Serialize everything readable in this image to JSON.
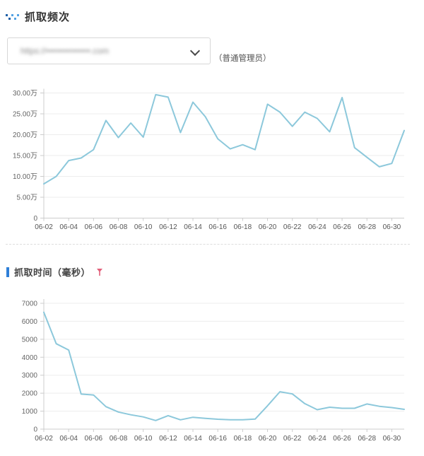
{
  "header": {
    "title": "抓取频次",
    "icon": "crawl-zigzag-icon",
    "site_selector": {
      "value_masked": "https://•••••••••••••••.com",
      "masked": true,
      "admin_label": "（普通管理员）"
    }
  },
  "section2": {
    "title": "抓取时间（毫秒）",
    "icon": "red-down-arrow-icon"
  },
  "colors": {
    "accent_blue": "#2e7fd8",
    "line_blue": "#8cc8db",
    "icon_blue_dark": "#1c5fa8",
    "icon_blue_light": "#53a2e4",
    "red_icon": "#e2607b",
    "axis": "#cccccc",
    "gridline": "#ededed",
    "tick_label": "#666666"
  },
  "chart_data": [
    {
      "type": "line",
      "title": "抓取频次",
      "xlabel": "",
      "ylabel": "",
      "yunit": "万",
      "grid": true,
      "legend": false,
      "xlabel_interval": 2,
      "ylim": [
        0,
        300000
      ],
      "yticks": [
        {
          "value": 0,
          "label": "0"
        },
        {
          "value": 50000,
          "label": "5.00万"
        },
        {
          "value": 100000,
          "label": "10.00万"
        },
        {
          "value": 150000,
          "label": "15.00万"
        },
        {
          "value": 200000,
          "label": "20.00万"
        },
        {
          "value": 250000,
          "label": "25.00万"
        },
        {
          "value": 300000,
          "label": "30.00万"
        }
      ],
      "x": [
        "06-02",
        "06-03",
        "06-04",
        "06-05",
        "06-06",
        "06-07",
        "06-08",
        "06-09",
        "06-10",
        "06-11",
        "06-12",
        "06-13",
        "06-14",
        "06-15",
        "06-16",
        "06-17",
        "06-18",
        "06-19",
        "06-20",
        "06-21",
        "06-22",
        "06-23",
        "06-24",
        "06-25",
        "06-26",
        "06-27",
        "06-28",
        "06-29",
        "06-30",
        "07-01"
      ],
      "values": [
        82000,
        100000,
        138000,
        144000,
        164000,
        234000,
        193000,
        228000,
        194000,
        296000,
        290000,
        205000,
        278000,
        243000,
        190000,
        166000,
        176000,
        164000,
        273000,
        254000,
        220000,
        254000,
        239000,
        207000,
        289000,
        169000,
        146000,
        123000,
        131000,
        210000
      ]
    },
    {
      "type": "line",
      "title": "抓取时间（毫秒）",
      "xlabel": "",
      "ylabel": "",
      "yunit": "毫秒",
      "grid": true,
      "legend": false,
      "xlabel_interval": 2,
      "ylim": [
        0,
        7000
      ],
      "yticks": [
        {
          "value": 0,
          "label": "0"
        },
        {
          "value": 1000,
          "label": "1000"
        },
        {
          "value": 2000,
          "label": "2000"
        },
        {
          "value": 3000,
          "label": "3000"
        },
        {
          "value": 4000,
          "label": "4000"
        },
        {
          "value": 5000,
          "label": "5000"
        },
        {
          "value": 6000,
          "label": "6000"
        },
        {
          "value": 7000,
          "label": "7000"
        }
      ],
      "x": [
        "06-02",
        "06-03",
        "06-04",
        "06-05",
        "06-06",
        "06-07",
        "06-08",
        "06-09",
        "06-10",
        "06-11",
        "06-12",
        "06-13",
        "06-14",
        "06-15",
        "06-16",
        "06-17",
        "06-18",
        "06-19",
        "06-20",
        "06-21",
        "06-22",
        "06-23",
        "06-24",
        "06-25",
        "06-26",
        "06-27",
        "06-28",
        "06-29",
        "06-30",
        "07-01"
      ],
      "values": [
        6500,
        4750,
        4400,
        1950,
        1900,
        1250,
        950,
        800,
        680,
        480,
        750,
        520,
        660,
        600,
        550,
        520,
        520,
        560,
        1300,
        2080,
        1960,
        1420,
        1080,
        1220,
        1160,
        1160,
        1400,
        1270,
        1200,
        1100
      ]
    }
  ]
}
